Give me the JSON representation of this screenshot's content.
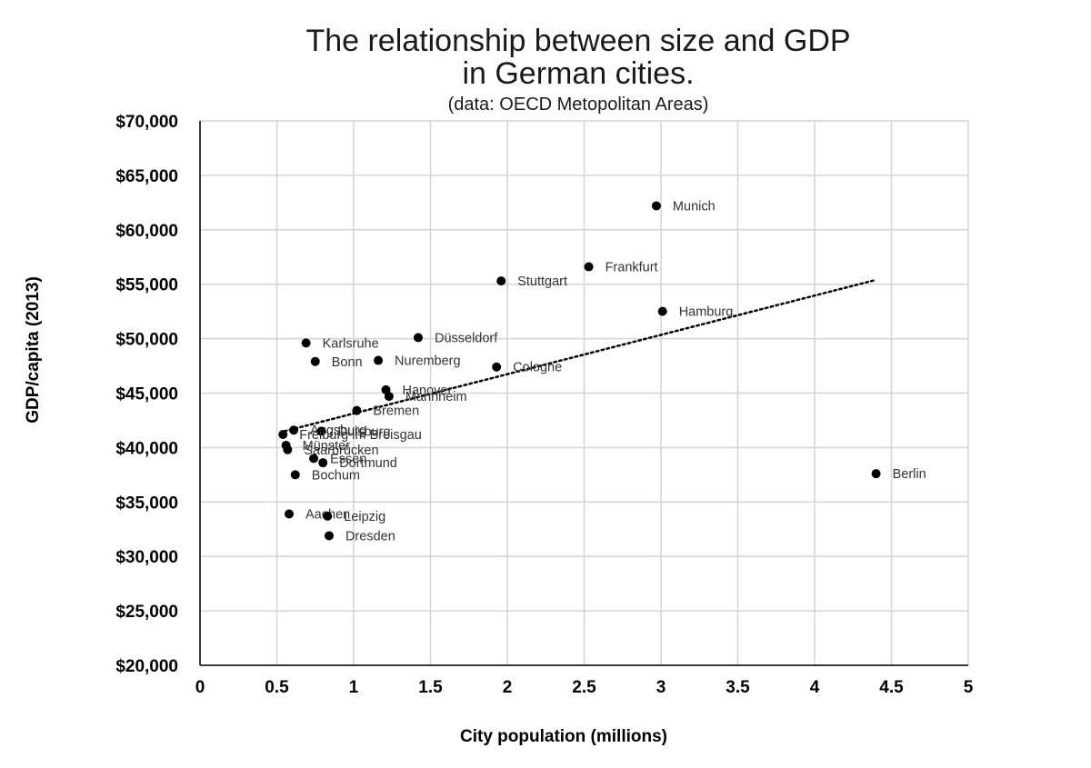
{
  "chart_data": {
    "type": "scatter",
    "title_line1": "The relationship between size and GDP",
    "title_line2": "in German cities.",
    "subtitle": "(data: OECD Metopolitan Areas)",
    "xlabel": "City population (millions)",
    "ylabel": "GDP/capita (2013)",
    "xlim": [
      0,
      5
    ],
    "ylim": [
      20000,
      70000
    ],
    "x_ticks": [
      0,
      0.5,
      1,
      1.5,
      2,
      2.5,
      3,
      3.5,
      4,
      4.5,
      5
    ],
    "x_tick_labels": [
      "0",
      "0.5",
      "1",
      "1.5",
      "2",
      "2.5",
      "3",
      "3.5",
      "4",
      "4.5",
      "5"
    ],
    "y_ticks": [
      20000,
      25000,
      30000,
      35000,
      40000,
      45000,
      50000,
      55000,
      60000,
      65000,
      70000
    ],
    "y_tick_labels": [
      "$20,000",
      "$25,000",
      "$30,000",
      "$35,000",
      "$40,000",
      "$45,000",
      "$50,000",
      "$55,000",
      "$60,000",
      "$65,000",
      "$70,000"
    ],
    "grid": true,
    "trendline": {
      "style": "dotted",
      "from": [
        0.55,
        41500
      ],
      "to": [
        4.4,
        55400
      ]
    },
    "points": [
      {
        "label": "Munich",
        "x": 2.97,
        "y": 62200
      },
      {
        "label": "Frankfurt",
        "x": 2.53,
        "y": 56600
      },
      {
        "label": "Stuttgart",
        "x": 1.96,
        "y": 55300
      },
      {
        "label": "Hamburg",
        "x": 3.01,
        "y": 52500
      },
      {
        "label": "Karlsruhe",
        "x": 0.69,
        "y": 49600
      },
      {
        "label": "Düsseldorf",
        "x": 1.42,
        "y": 50100
      },
      {
        "label": "Bonn",
        "x": 0.75,
        "y": 47900
      },
      {
        "label": "Nuremberg",
        "x": 1.16,
        "y": 48000
      },
      {
        "label": "Cologne",
        "x": 1.93,
        "y": 47400
      },
      {
        "label": "Hanover",
        "x": 1.21,
        "y": 45300
      },
      {
        "label": "Mannheim",
        "x": 1.23,
        "y": 44700
      },
      {
        "label": "Bremen",
        "x": 1.02,
        "y": 43400
      },
      {
        "label": "Augsburg",
        "x": 0.61,
        "y": 41600
      },
      {
        "label": "Duisburg",
        "x": 0.79,
        "y": 41500
      },
      {
        "label": "Freiburg im Breisgau",
        "x": 0.54,
        "y": 41200
      },
      {
        "label": "Münster",
        "x": 0.56,
        "y": 40200
      },
      {
        "label": "Saarbrücken",
        "x": 0.57,
        "y": 39800
      },
      {
        "label": "Essen",
        "x": 0.74,
        "y": 39000
      },
      {
        "label": "Dortmund",
        "x": 0.8,
        "y": 38600
      },
      {
        "label": "Bochum",
        "x": 0.62,
        "y": 37500
      },
      {
        "label": "Berlin",
        "x": 4.4,
        "y": 37600
      },
      {
        "label": "Aachen",
        "x": 0.58,
        "y": 33900
      },
      {
        "label": "Leipzig",
        "x": 0.83,
        "y": 33700
      },
      {
        "label": "Dresden",
        "x": 0.84,
        "y": 31900
      }
    ]
  }
}
